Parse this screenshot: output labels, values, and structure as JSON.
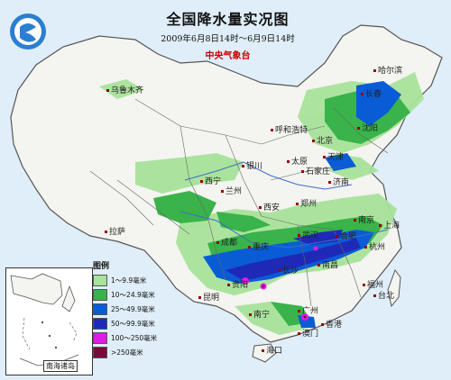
{
  "map": {
    "title": "全国降水量实况图",
    "subtitle": "2009年6月8日14时～6月9日14时",
    "agency": "中央气象台",
    "logo_icon": "cma-logo-icon",
    "colors": {
      "sea": "#dfeef8",
      "land": "#f4f4f0",
      "band1": "#a8e39a",
      "band2": "#39b34a",
      "band3": "#0a5bd6",
      "band4": "#1f29b8",
      "band5": "#e11be6",
      "band6": "#7a0a3c",
      "border": "#555555",
      "river": "#3b6fc4"
    }
  },
  "cities": [
    {
      "name": "乌鲁木齐"
    },
    {
      "name": "哈尔滨"
    },
    {
      "name": "长春"
    },
    {
      "name": "呼和浩特"
    },
    {
      "name": "北京"
    },
    {
      "name": "沈阳"
    },
    {
      "name": "天津"
    },
    {
      "name": "石家庄"
    },
    {
      "name": "太原"
    },
    {
      "name": "银川"
    },
    {
      "name": "济南"
    },
    {
      "name": "西宁"
    },
    {
      "name": "兰州"
    },
    {
      "name": "郑州"
    },
    {
      "name": "西安"
    },
    {
      "name": "南京"
    },
    {
      "name": "上海"
    },
    {
      "name": "合肥"
    },
    {
      "name": "杭州"
    },
    {
      "name": "拉萨"
    },
    {
      "name": "成都"
    },
    {
      "name": "武汉"
    },
    {
      "name": "重庆"
    },
    {
      "name": "南昌"
    },
    {
      "name": "长沙"
    },
    {
      "name": "贵阳"
    },
    {
      "name": "福州"
    },
    {
      "name": "台北"
    },
    {
      "name": "昆明"
    },
    {
      "name": "南宁"
    },
    {
      "name": "广州"
    },
    {
      "name": "香港"
    },
    {
      "name": "澳门"
    },
    {
      "name": "海口"
    }
  ],
  "legend": {
    "title": "图例",
    "items": [
      {
        "label": "1～9.9毫米",
        "color": "#a8e39a"
      },
      {
        "label": "10～24.9毫米",
        "color": "#39b34a"
      },
      {
        "label": "25～49.9毫米",
        "color": "#0a5bd6"
      },
      {
        "label": "50～99.9毫米",
        "color": "#1f29b8"
      },
      {
        "label": "100～250毫米",
        "color": "#e11be6"
      },
      {
        "label": ">250毫米",
        "color": "#7a0a3c"
      }
    ]
  },
  "inset": {
    "label": "南海诸岛"
  }
}
